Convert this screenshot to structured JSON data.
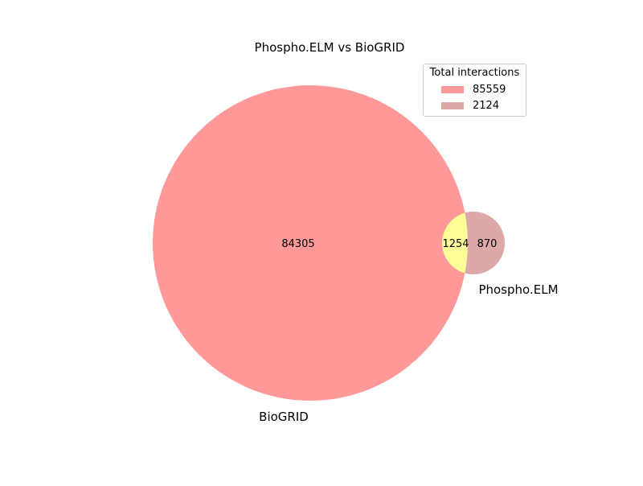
{
  "title": "Phospho.ELM vs BioGRID",
  "sets": [
    {
      "name": "BioGRID",
      "only": "84305",
      "total": "85559",
      "color": "#ff9999"
    },
    {
      "name": "Phospho.ELM",
      "only": "870",
      "total": "2124",
      "color": "#dda8a8"
    }
  ],
  "intersection": {
    "value": "1254",
    "color": "#ffff99"
  },
  "legend": {
    "title": "Total interactions",
    "items": [
      {
        "label": "85559",
        "color": "#ff9999"
      },
      {
        "label": "2124",
        "color": "#dda8a8"
      }
    ]
  }
}
